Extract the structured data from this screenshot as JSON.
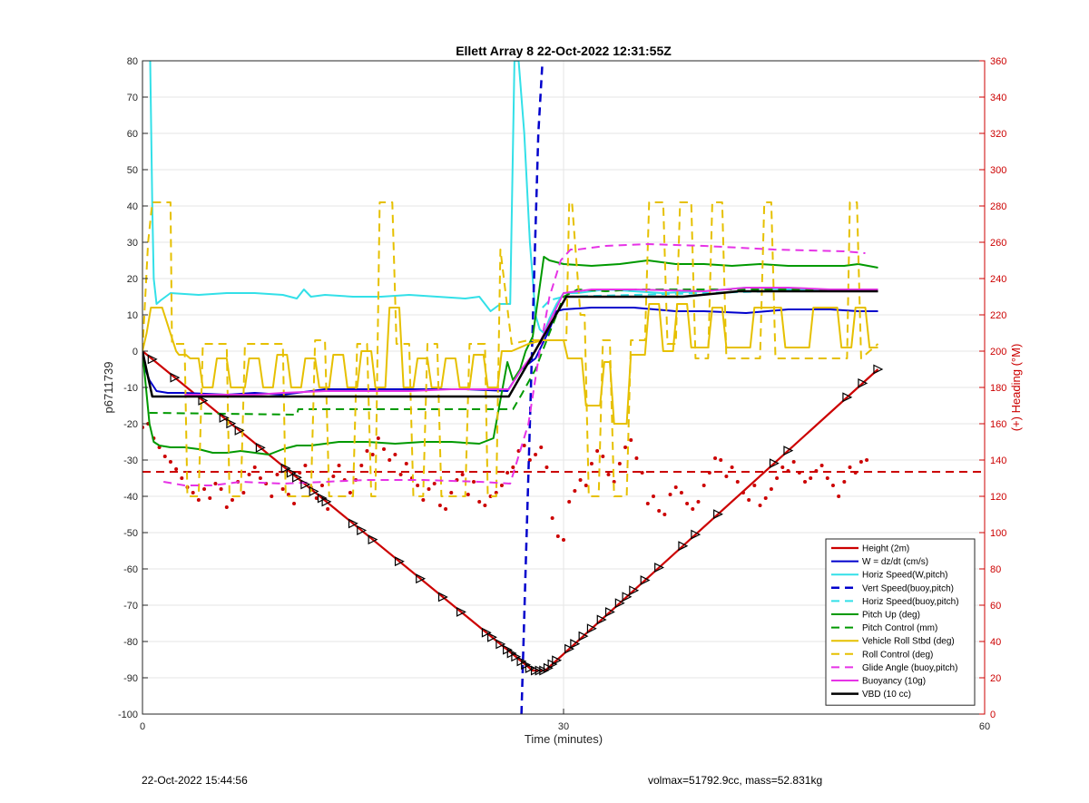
{
  "chart_data": {
    "type": "line",
    "title": "Ellett Array 8 22-Oct-2022 12:31:55Z",
    "xlabel": "Time (minutes)",
    "ylabel": "p6711739",
    "y2label": "(+) Heading (°M)",
    "xlim": [
      0,
      60
    ],
    "ylim": [
      -100,
      80
    ],
    "y2lim": [
      0,
      360
    ],
    "xticks": [
      0,
      30,
      60
    ],
    "yticks": [
      -100,
      -90,
      -80,
      -70,
      -60,
      -50,
      -40,
      -30,
      -20,
      -10,
      0,
      10,
      20,
      30,
      40,
      50,
      60,
      70,
      80
    ],
    "y2ticks": [
      0,
      20,
      40,
      60,
      80,
      100,
      120,
      140,
      160,
      180,
      200,
      220,
      240,
      260,
      280,
      300,
      320,
      340,
      360
    ],
    "grid": true,
    "legend_position": "bottom-right",
    "colors": {
      "red": "#cc0000",
      "blue": "#0000cc",
      "cyan": "#33e0e8",
      "green": "#009900",
      "gold": "#e6c000",
      "magenta": "#e633e6",
      "black": "#000000",
      "right_axis": "#cc0000"
    },
    "series": [
      {
        "name": "Height (2m)",
        "color": "#cc0000",
        "style": "solid",
        "width": 2.2,
        "x": [
          0,
          27.8,
          28.7,
          52.4
        ],
        "y": [
          0,
          -88,
          -88,
          -5
        ]
      },
      {
        "name": "W = dz/dt (cm/s)",
        "color": "#0000cc",
        "style": "solid",
        "width": 2,
        "x": [
          0,
          0.5,
          1,
          1.8,
          3,
          6,
          8,
          10,
          12,
          13,
          15,
          17,
          20,
          23,
          25,
          26,
          27,
          28,
          29,
          29.5,
          30,
          32,
          35,
          38,
          40,
          43,
          46,
          49,
          51,
          52.4
        ],
        "y": [
          -3,
          -8,
          -11,
          -11.5,
          -11.5,
          -12,
          -11.5,
          -12,
          -11,
          -10.5,
          -10.5,
          -10.5,
          -10.5,
          -10.5,
          -10.8,
          -11,
          -5,
          -2,
          6,
          11,
          11.5,
          12,
          12,
          11,
          11,
          10.5,
          11.5,
          11.5,
          11,
          11
        ]
      },
      {
        "name": "Horiz Speed(W,pitch)",
        "color": "#33e0e8",
        "style": "solid",
        "width": 2,
        "x": [
          0.55,
          0.7,
          0.8,
          1,
          1.3,
          2,
          4,
          6,
          8,
          10,
          11,
          11.5,
          12,
          13,
          15,
          17,
          19,
          21,
          23,
          24,
          24.8,
          25.5,
          26.2,
          26.5,
          26.8,
          27.2,
          27.6,
          28,
          28.3,
          28.6,
          29,
          29.5,
          30,
          31,
          33,
          35,
          37,
          40,
          43,
          46,
          49,
          52.4
        ],
        "y": [
          80,
          40,
          20,
          13,
          14,
          16,
          15.5,
          16,
          16,
          15.5,
          14.5,
          17,
          15,
          15.5,
          15,
          15,
          15.5,
          15,
          14.5,
          15,
          11,
          13,
          13,
          80,
          80,
          60,
          30,
          10,
          6,
          5,
          9,
          13,
          16,
          16,
          17,
          16.5,
          16,
          16.5,
          17.5,
          17,
          17,
          16.5
        ]
      },
      {
        "name": "Vert Speed(buoy,pitch)",
        "color": "#0000cc",
        "style": "dashed",
        "width": 2.5,
        "x": [
          27.0,
          27.3,
          27.6,
          27.9,
          28.2,
          28.5
        ],
        "y": [
          -100,
          -60,
          -20,
          20,
          60,
          80
        ]
      },
      {
        "name": "Horiz Speed(buoy,pitch)",
        "color": "#33e0e8",
        "style": "dashed",
        "width": 2,
        "x": [
          28.5,
          29,
          30,
          35,
          40,
          45,
          52.4
        ],
        "y": [
          12,
          14,
          15,
          15.5,
          16,
          16.5,
          16.5
        ]
      },
      {
        "name": "Pitch Up (deg)",
        "color": "#009900",
        "style": "solid",
        "width": 2,
        "x": [
          0,
          0.5,
          0.8,
          1.2,
          2,
          3,
          4,
          5,
          6,
          7,
          8,
          9,
          10,
          11,
          12,
          14,
          16,
          18,
          20,
          22,
          24,
          25,
          26,
          26.4,
          26.9,
          27.3,
          27.8,
          28.2,
          28.6,
          29,
          30,
          32,
          34,
          36,
          38,
          40,
          42,
          44,
          46,
          48,
          50,
          51,
          52.4
        ],
        "y": [
          0,
          -20,
          -25,
          -26,
          -26.5,
          -26.5,
          -27,
          -28,
          -28,
          -27.5,
          -28,
          -28.5,
          -27,
          -26,
          -26,
          -25,
          -25,
          -25.5,
          -25,
          -25,
          -25.5,
          -24,
          -3,
          -8,
          -5,
          0,
          4,
          15,
          26,
          25,
          24,
          23.5,
          24,
          25,
          24,
          24,
          23.5,
          24,
          23.5,
          23.5,
          23.5,
          24,
          23
        ]
      },
      {
        "name": "Pitch Control (mm)",
        "color": "#009900",
        "style": "dashed",
        "width": 2,
        "x": [
          0.5,
          11,
          11.1,
          26.4,
          27,
          28,
          29,
          30,
          31,
          33,
          35,
          40,
          45,
          52.4
        ],
        "y": [
          -17,
          -17.5,
          -16,
          -16,
          -12,
          -5,
          5,
          15,
          17,
          16.5,
          17,
          17,
          17,
          17
        ]
      },
      {
        "name": "Vehicle Roll Stbd (deg)",
        "color": "#e6c000",
        "style": "solid",
        "width": 2,
        "x": [
          0,
          0.3,
          0.6,
          1.4,
          2.4,
          2.6,
          3.1,
          3.4,
          4,
          4.3,
          5,
          5.3,
          6,
          6.3,
          7.3,
          7.6,
          8.3,
          8.6,
          9.3,
          9.6,
          10.3,
          10.6,
          11.3,
          11.6,
          12.3,
          12.6,
          13.3,
          13.6,
          14.3,
          14.6,
          15.3,
          15.6,
          16.3,
          16.6,
          17.3,
          17.6,
          18.3,
          18.6,
          19.3,
          19.6,
          20.3,
          20.6,
          21.3,
          21.6,
          22.3,
          22.6,
          23.3,
          23.6,
          24.3,
          24.6,
          25.3,
          25.6,
          26.3,
          27.5,
          28.5,
          30,
          30.3,
          31.3,
          31.6,
          32.6,
          32.9,
          33.3,
          33.6,
          34.5,
          34.8,
          35.8,
          36.1,
          36.8,
          37.1,
          37.8,
          38.1,
          38.8,
          39.1,
          40.3,
          40.6,
          41.3,
          41.6,
          43.3,
          43.6,
          45.5,
          45.8,
          47.5,
          47.8,
          49.5,
          49.8,
          50.5,
          50.8,
          51.5,
          51.8,
          52.4
        ],
        "y": [
          0,
          5,
          12,
          12,
          0,
          -1,
          -1,
          -2,
          -2,
          -10,
          -10,
          -2,
          -2,
          -10,
          -10,
          -2,
          -2,
          -10,
          -10,
          -1,
          -1,
          -10,
          -10,
          -2,
          -2,
          -10,
          -10,
          -1,
          -1,
          -10,
          -10,
          0,
          0,
          -10,
          -10,
          12,
          12,
          -10,
          -10,
          -2,
          -2,
          -10,
          -10,
          -2,
          -2,
          -10,
          -10,
          -1,
          -1,
          -10,
          -10,
          0,
          0,
          2,
          3,
          3,
          -2,
          -2,
          -15,
          -15,
          -3,
          -3,
          -20,
          -20,
          -1,
          -1,
          13,
          13,
          0,
          0,
          13,
          13,
          1,
          1,
          12,
          12,
          1,
          1,
          12,
          12,
          1,
          1,
          12,
          12,
          1,
          1,
          12,
          12,
          1,
          1
        ]
      },
      {
        "name": "Roll Control (deg)",
        "color": "#e6c000",
        "style": "dashed",
        "width": 2,
        "x": [
          0,
          0.4,
          0.7,
          1,
          1.2,
          1.4,
          2,
          2.1,
          3,
          3.2,
          4,
          4.3,
          6,
          6.2,
          7,
          7.3,
          10,
          10.2,
          12,
          12.3,
          13,
          13.3,
          15,
          15.3,
          16,
          16.3,
          16.6,
          16.9,
          17.8,
          18.1,
          19,
          19.3,
          20,
          20.3,
          21,
          21.3,
          23,
          23.3,
          24.4,
          24.6,
          25.2,
          25.5,
          26.3,
          27.5,
          28.5,
          29.5,
          30.2,
          30.4,
          30.6,
          31.2,
          31.5,
          31.8,
          32.5,
          32.8,
          33.3,
          33.6,
          34.5,
          34.8,
          35.8,
          36.1,
          37.1,
          37.4,
          38,
          38.3,
          39.1,
          39.4,
          40.3,
          40.6,
          41.3,
          41.6,
          44,
          44.3,
          44.8,
          45.1,
          50.2,
          50.4,
          50.9,
          51.2,
          52.4
        ],
        "y": [
          0,
          30,
          41,
          41,
          41,
          41,
          41,
          2,
          2,
          -40,
          -40,
          2,
          2,
          -40,
          -40,
          2,
          2,
          -40,
          -40,
          3,
          3,
          -40,
          -40,
          2,
          2,
          -40,
          -40,
          41,
          41,
          2,
          2,
          -40,
          -40,
          2,
          2,
          -40,
          -40,
          2,
          2,
          -40,
          -40,
          28,
          2,
          3,
          3,
          3,
          3,
          41,
          41,
          10,
          10,
          -40,
          -40,
          3,
          3,
          -40,
          -40,
          3,
          3,
          41,
          41,
          2,
          2,
          41,
          41,
          -2,
          -2,
          41,
          41,
          -2,
          -2,
          41,
          41,
          -2,
          -2,
          41,
          41,
          -2,
          2
        ]
      },
      {
        "name": "Glide Angle (buoy,pitch)",
        "color": "#e633e6",
        "style": "dashed",
        "width": 2,
        "x": [
          1.5,
          3,
          5,
          7,
          10,
          13,
          16,
          20,
          24,
          26.2,
          27.5,
          28.3,
          29,
          29.8,
          30.5,
          31,
          33,
          36,
          40,
          45,
          50,
          51.5
        ],
        "y": [
          -36,
          -37,
          -37,
          -36,
          -36.5,
          -36,
          -35.5,
          -35.5,
          -36,
          -36.5,
          -20,
          0,
          15,
          25,
          28,
          28,
          29,
          29.5,
          29,
          28,
          27.5,
          27
        ]
      },
      {
        "name": "Buoyancy (10g)",
        "color": "#e633e6",
        "style": "solid",
        "width": 2,
        "x": [
          3,
          5,
          8,
          10,
          13,
          16,
          19,
          22,
          24,
          26.1,
          27,
          28,
          29,
          30,
          32,
          35,
          40,
          43,
          46,
          49,
          52.4
        ],
        "y": [
          -12,
          -12,
          -12,
          -11.5,
          -11,
          -11,
          -11,
          -10.5,
          -10.5,
          -10.5,
          -5,
          0,
          8,
          16,
          17,
          17,
          16.5,
          17.5,
          17.5,
          17,
          17
        ]
      },
      {
        "name": "VBD (10 cc)",
        "color": "#000000",
        "style": "solid",
        "width": 2.5,
        "x": [
          0,
          0.7,
          26.1,
          30.2,
          38.5,
          42.5,
          52.4
        ],
        "y": [
          0,
          -12.5,
          -12.5,
          15,
          15,
          16.5,
          16.5
        ]
      }
    ],
    "heading_points": {
      "color": "#cc0000",
      "axis": "right",
      "x": [
        0,
        0.4,
        0.8,
        1.2,
        1.6,
        2.0,
        2.4,
        2.8,
        3.2,
        3.6,
        4.0,
        4.4,
        4.8,
        5.2,
        5.6,
        6.0,
        6.4,
        6.8,
        7.2,
        7.6,
        8.0,
        8.4,
        8.8,
        9.2,
        9.6,
        10.0,
        10.4,
        10.8,
        11.2,
        11.6,
        12.0,
        12.4,
        12.8,
        13.2,
        13.6,
        14.0,
        14.4,
        14.8,
        15.2,
        15.6,
        16.0,
        16.4,
        16.8,
        17.2,
        17.6,
        18.0,
        18.4,
        18.8,
        19.2,
        19.6,
        20.0,
        20.4,
        20.8,
        21.2,
        21.6,
        22.0,
        22.4,
        22.8,
        23.2,
        23.6,
        24.0,
        24.4,
        24.8,
        25.2,
        25.6,
        26.0,
        26.4,
        26.8,
        27.2,
        27.6,
        28.0,
        28.4,
        28.8,
        29.2,
        29.6,
        30.0,
        30.4,
        30.8,
        31.2,
        31.6,
        32.0,
        32.4,
        32.8,
        33.2,
        33.6,
        34.0,
        34.4,
        34.8,
        35.2,
        35.6,
        36.0,
        36.4,
        36.8,
        37.2,
        37.6,
        38.0,
        38.4,
        38.8,
        39.2,
        39.6,
        40.0,
        40.4,
        40.8,
        41.2,
        41.6,
        42.0,
        42.4,
        42.8,
        43.2,
        43.6,
        44.0,
        44.4,
        44.8,
        45.2,
        45.6,
        46.0,
        46.4,
        46.8,
        47.2,
        47.6,
        48.0,
        48.4,
        48.8,
        49.2,
        49.6,
        50.0,
        50.4,
        50.8,
        51.2,
        51.6
      ],
      "y": [
        158,
        160,
        152,
        147,
        142,
        139,
        135,
        130,
        125,
        122,
        118,
        124,
        119,
        127,
        124,
        114,
        118,
        128,
        122,
        132,
        136,
        130,
        127,
        120,
        132,
        124,
        121,
        116,
        133,
        137,
        125,
        119,
        126,
        113,
        131,
        137,
        129,
        122,
        129,
        137,
        145,
        143,
        152,
        146,
        140,
        143,
        132,
        138,
        130,
        126,
        118,
        124,
        127,
        115,
        113,
        122,
        129,
        132,
        121,
        128,
        117,
        115,
        120,
        122,
        126,
        133,
        136,
        145,
        148,
        140,
        143,
        147,
        136,
        108,
        98,
        96,
        117,
        123,
        129,
        126,
        138,
        145,
        142,
        132,
        128,
        138,
        147,
        151,
        141,
        133,
        116,
        120,
        112,
        110,
        121,
        125,
        122,
        116,
        113,
        117,
        126,
        133,
        141,
        140,
        131,
        136,
        128,
        122,
        118,
        126,
        115,
        119,
        124,
        130,
        136,
        134,
        139,
        133,
        128,
        130,
        134,
        137,
        130,
        126,
        120,
        128,
        136,
        133,
        139,
        140
      ]
    },
    "heading_mean": {
      "value": 133.5,
      "color": "#cc0000",
      "style": "dashed",
      "axis": "right"
    },
    "markers": {
      "on_series": "Height (2m)",
      "shape": "triangle",
      "x": [
        0.7,
        2.3,
        4.3,
        5.8,
        6.3,
        6.9,
        8.4,
        10.2,
        10.6,
        11.0,
        11.6,
        12.2,
        12.8,
        13.1,
        15.0,
        15.6,
        16.4,
        18.3,
        19.8,
        21.4,
        22.7,
        24.5,
        24.9,
        25.5,
        26.0,
        26.3,
        26.6,
        27.0,
        27.3,
        27.6,
        28.0,
        28.3,
        28.6,
        28.9,
        29.2,
        29.5,
        30.4,
        30.8,
        31.4,
        32.0,
        32.7,
        33.3,
        34.0,
        34.5,
        35.0,
        35.8,
        36.8,
        38.5,
        39.4,
        41.0,
        45.0,
        46.0,
        50.2,
        51.3,
        52.4
      ]
    }
  },
  "footer": {
    "timestamp": "22-Oct-2022 15:44:56",
    "summary": "volmax=51792.9cc, mass=52.831kg"
  }
}
